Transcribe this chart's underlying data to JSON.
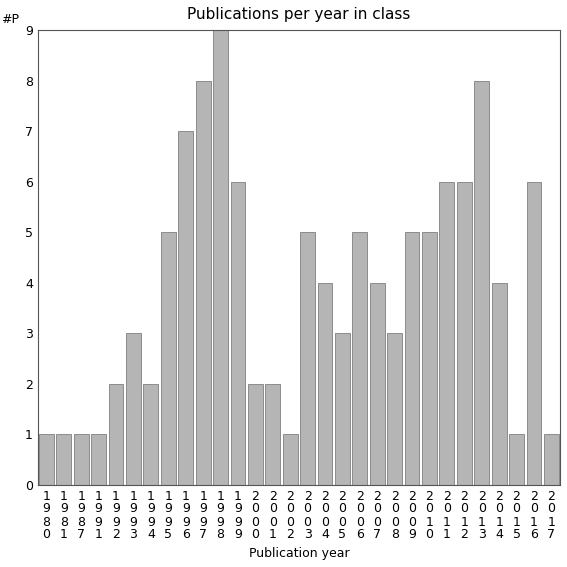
{
  "years": [
    "1980",
    "1981",
    "1987",
    "1991",
    "1992",
    "1993",
    "1994",
    "1995",
    "1996",
    "1997",
    "1998",
    "1999",
    "2000",
    "2001",
    "2002",
    "2003",
    "2004",
    "2005",
    "2006",
    "2007",
    "2008",
    "2009",
    "2010",
    "2011",
    "2012",
    "2013",
    "2014",
    "2015",
    "2016",
    "2017"
  ],
  "values": [
    1,
    1,
    1,
    1,
    2,
    3,
    2,
    5,
    7,
    8,
    9,
    6,
    2,
    2,
    1,
    5,
    4,
    3,
    5,
    4,
    3,
    5,
    5,
    6,
    6,
    8,
    4,
    1,
    6,
    1
  ],
  "bar_color": "#b5b5b5",
  "bar_edge_color": "#808080",
  "title": "Publications per year in class",
  "xlabel": "Publication year",
  "ylabel": "#P",
  "ylim": [
    0,
    9
  ],
  "yticks": [
    0,
    1,
    2,
    3,
    4,
    5,
    6,
    7,
    8,
    9
  ],
  "title_fontsize": 11,
  "label_fontsize": 9,
  "tick_fontsize": 9,
  "bg_color": "#ffffff"
}
